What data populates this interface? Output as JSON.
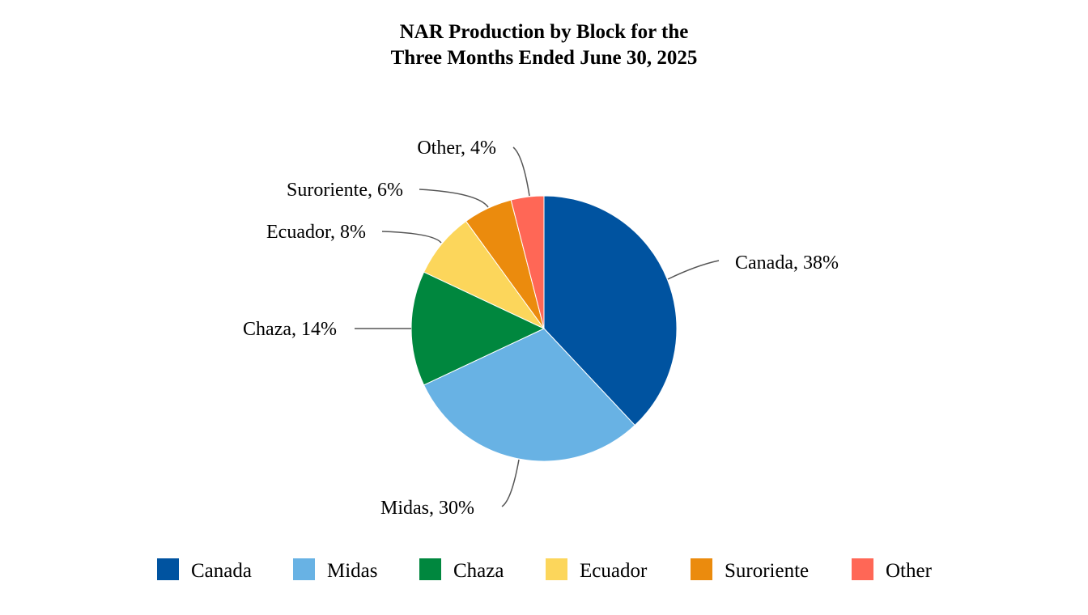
{
  "chart_data": {
    "type": "pie",
    "title_line1": "NAR Production by Block for the",
    "title_line2": "Three Months Ended June 30, 2025",
    "slices": [
      {
        "name": "Canada",
        "value": 38,
        "label": "Canada, 38%",
        "color": "#0053A0"
      },
      {
        "name": "Midas",
        "value": 30,
        "label": "Midas, 30%",
        "color": "#68B2E4"
      },
      {
        "name": "Chaza",
        "value": 14,
        "label": "Chaza, 14%",
        "color": "#00873E"
      },
      {
        "name": "Ecuador",
        "value": 8,
        "label": "Ecuador, 8%",
        "color": "#FCD65B"
      },
      {
        "name": "Suroriente",
        "value": 6,
        "label": "Suroriente, 6%",
        "color": "#EB8B0D"
      },
      {
        "name": "Other",
        "value": 4,
        "label": "Other, 4%",
        "color": "#FF6756"
      }
    ],
    "legend_position": "bottom",
    "unit": "%"
  }
}
